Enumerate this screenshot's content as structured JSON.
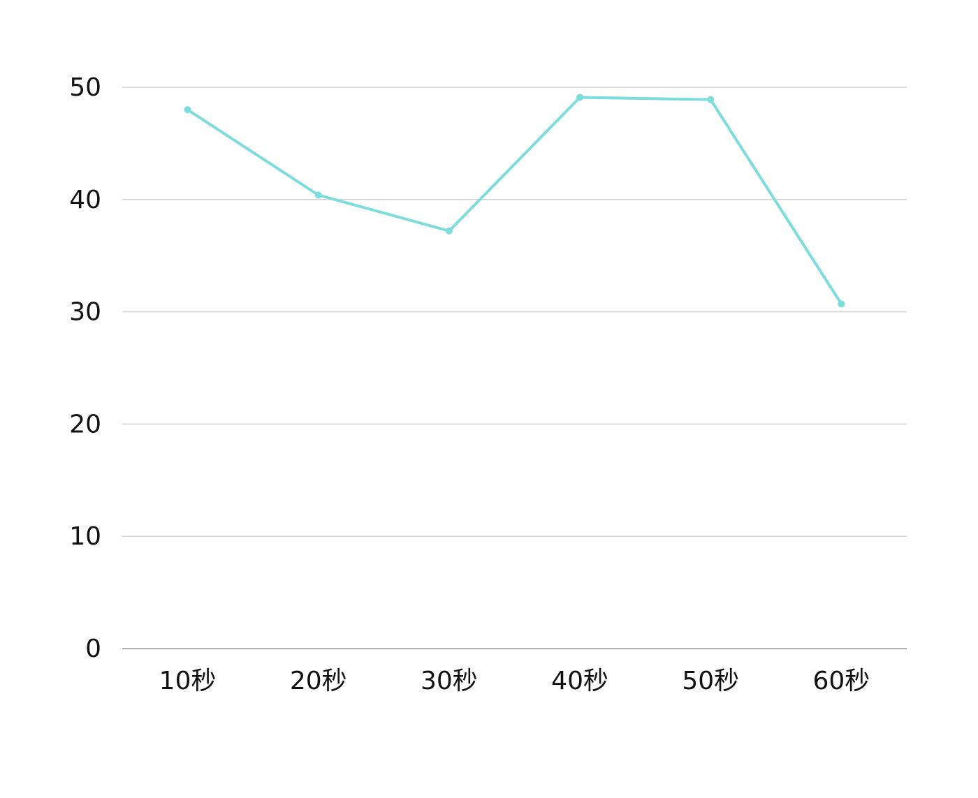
{
  "chart_data": {
    "type": "line",
    "categories": [
      "10秒",
      "20秒",
      "30秒",
      "40秒",
      "50秒",
      "60秒"
    ],
    "values": [
      48.0,
      40.4,
      37.2,
      49.1,
      48.9,
      30.7
    ],
    "color": "#7ddcdc",
    "ylim": [
      0,
      50
    ],
    "yticks": [
      0,
      10,
      20,
      30,
      40,
      50
    ],
    "grid": true
  }
}
